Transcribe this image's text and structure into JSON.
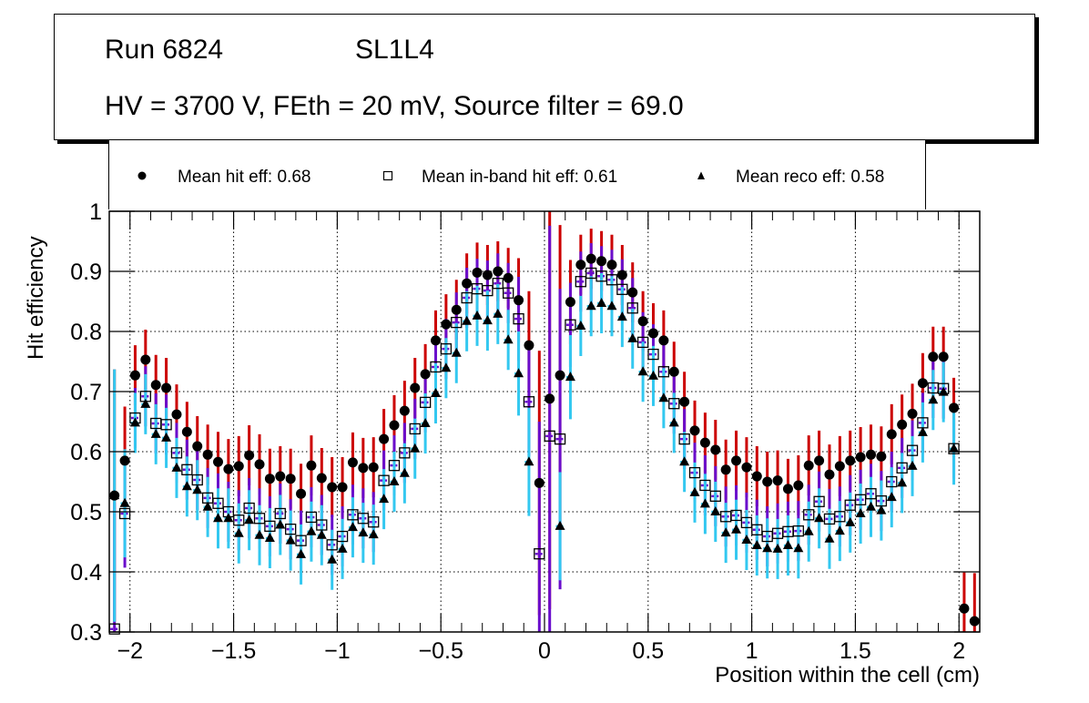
{
  "title_box": {
    "run": "Run 6824",
    "layer": "SL1L4",
    "conditions": "HV = 3700 V, FEth = 20 mV, Source filter = 69.0"
  },
  "chart_data": {
    "type": "scatter",
    "title": "Run 6824  SL1L4 — HV = 3700 V, FEth = 20 mV, Source filter = 69.0",
    "xlabel": "Position within the cell (cm)",
    "ylabel": "Hit efficiency",
    "xlim": [
      -2.1,
      2.1
    ],
    "ylim": [
      0.3,
      1.0
    ],
    "grid": true,
    "legend_placement": "top",
    "x_ticks": [
      -2,
      -1.5,
      -1,
      -0.5,
      0,
      0.5,
      1,
      1.5,
      2
    ],
    "x_tick_labels": [
      "−2",
      "−1.5",
      "−1",
      "−0.5",
      "0",
      "0.5",
      "1",
      "1.5",
      "2"
    ],
    "y_ticks": [
      0.3,
      0.4,
      0.5,
      0.6,
      0.7,
      0.8,
      0.9,
      1.0
    ],
    "y_tick_labels": [
      "0.3",
      "0.4",
      "0.5",
      "0.6",
      "0.7",
      "0.8",
      "0.9",
      "1"
    ],
    "x": [
      -2.075,
      -2.025,
      -1.975,
      -1.925,
      -1.875,
      -1.825,
      -1.775,
      -1.725,
      -1.675,
      -1.625,
      -1.575,
      -1.525,
      -1.475,
      -1.425,
      -1.375,
      -1.325,
      -1.275,
      -1.225,
      -1.175,
      -1.125,
      -1.075,
      -1.025,
      -0.975,
      -0.925,
      -0.875,
      -0.825,
      -0.775,
      -0.725,
      -0.675,
      -0.625,
      -0.575,
      -0.525,
      -0.475,
      -0.425,
      -0.375,
      -0.325,
      -0.275,
      -0.225,
      -0.175,
      -0.125,
      -0.075,
      -0.025,
      0.025,
      0.075,
      0.125,
      0.175,
      0.225,
      0.275,
      0.325,
      0.375,
      0.425,
      0.475,
      0.525,
      0.575,
      0.625,
      0.675,
      0.725,
      0.775,
      0.825,
      0.875,
      0.925,
      0.975,
      1.025,
      1.075,
      1.125,
      1.175,
      1.225,
      1.275,
      1.325,
      1.375,
      1.425,
      1.475,
      1.525,
      1.575,
      1.625,
      1.675,
      1.725,
      1.775,
      1.825,
      1.875,
      1.925,
      1.975,
      2.025,
      2.075
    ],
    "series": [
      {
        "name": "Mean hit  eff: 0.68",
        "marker": "circle",
        "marker_color": "#000000",
        "error_color": "#cc0000",
        "values": [
          0.527,
          0.585,
          0.727,
          0.753,
          0.711,
          0.706,
          0.662,
          0.633,
          0.609,
          0.595,
          0.583,
          0.571,
          0.576,
          0.594,
          0.579,
          0.555,
          0.559,
          0.555,
          0.53,
          0.577,
          0.556,
          0.541,
          0.541,
          0.582,
          0.573,
          0.574,
          0.621,
          0.644,
          0.668,
          0.706,
          0.729,
          0.785,
          0.812,
          0.836,
          0.88,
          0.898,
          0.894,
          0.9,
          0.889,
          0.852,
          0.777,
          0.548,
          0.688,
          0.727,
          0.849,
          0.911,
          0.921,
          0.917,
          0.911,
          0.894,
          0.865,
          0.817,
          0.797,
          0.785,
          0.733,
          0.683,
          0.635,
          0.615,
          0.603,
          0.57,
          0.585,
          0.574,
          0.559,
          0.55,
          0.552,
          0.538,
          0.544,
          0.577,
          0.585,
          0.562,
          0.576,
          0.585,
          0.591,
          0.595,
          0.592,
          0.629,
          0.645,
          0.663,
          0.714,
          0.758,
          0.758,
          0.673,
          0.339,
          0.318
        ],
        "errors": [
          0.21,
          0.09,
          0.05,
          0.05,
          0.05,
          0.05,
          0.05,
          0.05,
          0.05,
          0.05,
          0.05,
          0.05,
          0.05,
          0.05,
          0.05,
          0.05,
          0.05,
          0.05,
          0.05,
          0.05,
          0.05,
          0.05,
          0.05,
          0.05,
          0.05,
          0.05,
          0.05,
          0.05,
          0.05,
          0.05,
          0.05,
          0.05,
          0.05,
          0.05,
          0.05,
          0.05,
          0.05,
          0.05,
          0.05,
          0.07,
          0.09,
          0.22,
          0.35,
          0.25,
          0.07,
          0.05,
          0.05,
          0.05,
          0.05,
          0.05,
          0.05,
          0.05,
          0.05,
          0.05,
          0.05,
          0.05,
          0.05,
          0.05,
          0.05,
          0.05,
          0.05,
          0.05,
          0.05,
          0.05,
          0.05,
          0.05,
          0.05,
          0.05,
          0.05,
          0.05,
          0.05,
          0.05,
          0.05,
          0.05,
          0.05,
          0.05,
          0.05,
          0.05,
          0.05,
          0.05,
          0.05,
          0.05,
          0.06,
          0.08
        ]
      },
      {
        "name": "Mean in-band hit eff: 0.61",
        "marker": "open-square",
        "marker_color": "#000000",
        "error_color": "#6a0dcc",
        "values": [
          0.305,
          0.497,
          0.656,
          0.692,
          0.647,
          0.645,
          0.598,
          0.57,
          0.553,
          0.523,
          0.514,
          0.5,
          0.486,
          0.506,
          0.489,
          0.476,
          0.497,
          0.471,
          0.452,
          0.491,
          0.478,
          0.445,
          0.459,
          0.495,
          0.489,
          0.483,
          0.552,
          0.577,
          0.598,
          0.638,
          0.682,
          0.741,
          0.771,
          0.815,
          0.856,
          0.871,
          0.868,
          0.88,
          0.864,
          0.821,
          0.683,
          0.43,
          0.626,
          0.621,
          0.811,
          0.883,
          0.897,
          0.892,
          0.886,
          0.87,
          0.839,
          0.782,
          0.762,
          0.733,
          0.68,
          0.621,
          0.565,
          0.544,
          0.526,
          0.492,
          0.494,
          0.482,
          0.47,
          0.459,
          0.464,
          0.467,
          0.468,
          0.495,
          0.517,
          0.488,
          0.492,
          0.511,
          0.52,
          0.53,
          0.518,
          0.55,
          0.573,
          0.602,
          0.648,
          0.706,
          0.705,
          0.605,
          null,
          null
        ],
        "errors": [
          0.21,
          0.09,
          0.05,
          0.05,
          0.05,
          0.05,
          0.05,
          0.05,
          0.05,
          0.05,
          0.05,
          0.05,
          0.05,
          0.05,
          0.05,
          0.05,
          0.05,
          0.05,
          0.05,
          0.05,
          0.05,
          0.05,
          0.05,
          0.05,
          0.05,
          0.05,
          0.05,
          0.05,
          0.05,
          0.05,
          0.05,
          0.05,
          0.05,
          0.05,
          0.05,
          0.05,
          0.05,
          0.05,
          0.05,
          0.07,
          0.09,
          0.22,
          0.35,
          0.25,
          0.07,
          0.05,
          0.05,
          0.05,
          0.05,
          0.05,
          0.05,
          0.05,
          0.05,
          0.05,
          0.05,
          0.05,
          0.05,
          0.05,
          0.05,
          0.05,
          0.05,
          0.05,
          0.05,
          0.05,
          0.05,
          0.05,
          0.05,
          0.05,
          0.05,
          0.05,
          0.05,
          0.05,
          0.05,
          0.05,
          0.05,
          0.05,
          0.05,
          0.05,
          0.05,
          0.05,
          0.05,
          0.05,
          null,
          null
        ]
      },
      {
        "name": "Mean reco eff: 0.58",
        "marker": "triangle",
        "marker_color": "#000000",
        "error_color": "#33c8f0",
        "values": [
          0.527,
          0.514,
          0.648,
          0.679,
          0.629,
          0.623,
          0.573,
          0.542,
          0.536,
          0.508,
          0.489,
          0.489,
          0.464,
          0.486,
          0.461,
          0.456,
          0.478,
          0.452,
          0.429,
          0.467,
          0.461,
          0.42,
          0.438,
          0.474,
          0.465,
          0.462,
          0.521,
          0.55,
          0.564,
          0.605,
          0.647,
          0.697,
          0.739,
          0.764,
          0.817,
          0.826,
          0.818,
          0.829,
          0.786,
          0.73,
          0.583,
          null,
          null,
          0.476,
          0.724,
          0.809,
          0.842,
          0.847,
          0.842,
          0.824,
          0.788,
          0.733,
          0.726,
          0.689,
          0.648,
          0.583,
          0.532,
          0.513,
          0.5,
          0.465,
          0.47,
          0.453,
          0.444,
          0.439,
          0.438,
          0.444,
          0.439,
          0.467,
          0.489,
          0.455,
          0.468,
          0.482,
          0.497,
          0.508,
          0.502,
          0.524,
          0.548,
          0.576,
          0.632,
          0.686,
          0.699,
          0.605,
          null,
          null
        ],
        "errors": [
          0.21,
          0.09,
          0.05,
          0.05,
          0.05,
          0.05,
          0.05,
          0.05,
          0.05,
          0.05,
          0.05,
          0.05,
          0.05,
          0.05,
          0.05,
          0.05,
          0.05,
          0.05,
          0.05,
          0.05,
          0.05,
          0.05,
          0.05,
          0.05,
          0.05,
          0.05,
          0.05,
          0.05,
          0.05,
          0.05,
          0.05,
          0.05,
          0.05,
          0.05,
          0.05,
          0.05,
          0.05,
          0.05,
          0.05,
          0.07,
          0.09,
          null,
          null,
          0.09,
          0.07,
          0.05,
          0.05,
          0.05,
          0.05,
          0.05,
          0.05,
          0.05,
          0.05,
          0.05,
          0.05,
          0.05,
          0.05,
          0.05,
          0.05,
          0.05,
          0.05,
          0.05,
          0.05,
          0.05,
          0.05,
          0.05,
          0.05,
          0.05,
          0.05,
          0.05,
          0.05,
          0.05,
          0.05,
          0.05,
          0.05,
          0.05,
          0.05,
          0.05,
          0.05,
          0.05,
          0.05,
          0.06,
          null,
          null
        ]
      }
    ]
  }
}
